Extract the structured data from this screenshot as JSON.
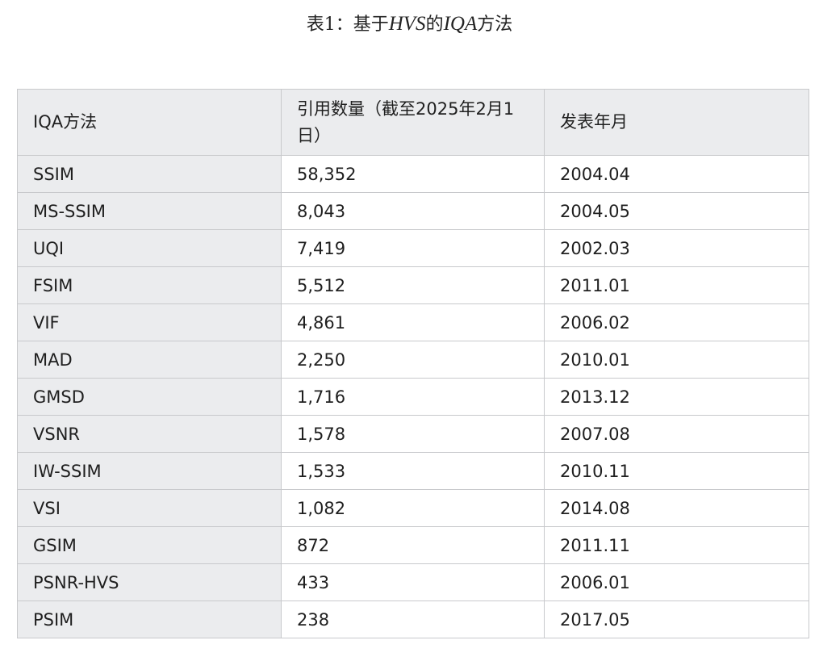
{
  "caption": {
    "prefix": "表1：基于",
    "hvs": "HVS",
    "middle": "的",
    "iqa": "IQA",
    "suffix": "方法"
  },
  "table": {
    "headers": [
      "IQA方法",
      "引用数量（截至2025年2月1日）",
      "发表年月"
    ],
    "rows": [
      [
        "SSIM",
        "58,352",
        "2004.04"
      ],
      [
        "MS-SSIM",
        "8,043",
        "2004.05"
      ],
      [
        "UQI",
        "7,419",
        "2002.03"
      ],
      [
        "FSIM",
        "5,512",
        "2011.01"
      ],
      [
        "VIF",
        "4,861",
        "2006.02"
      ],
      [
        "MAD",
        "2,250",
        "2010.01"
      ],
      [
        "GMSD",
        "1,716",
        "2013.12"
      ],
      [
        "VSNR",
        "1,578",
        "2007.08"
      ],
      [
        "IW-SSIM",
        "1,533",
        "2010.11"
      ],
      [
        "VSI",
        "1,082",
        "2014.08"
      ],
      [
        "GSIM",
        "872",
        "2011.11"
      ],
      [
        "PSNR-HVS",
        "433",
        "2006.01"
      ],
      [
        "PSIM",
        "238",
        "2017.05"
      ]
    ]
  }
}
